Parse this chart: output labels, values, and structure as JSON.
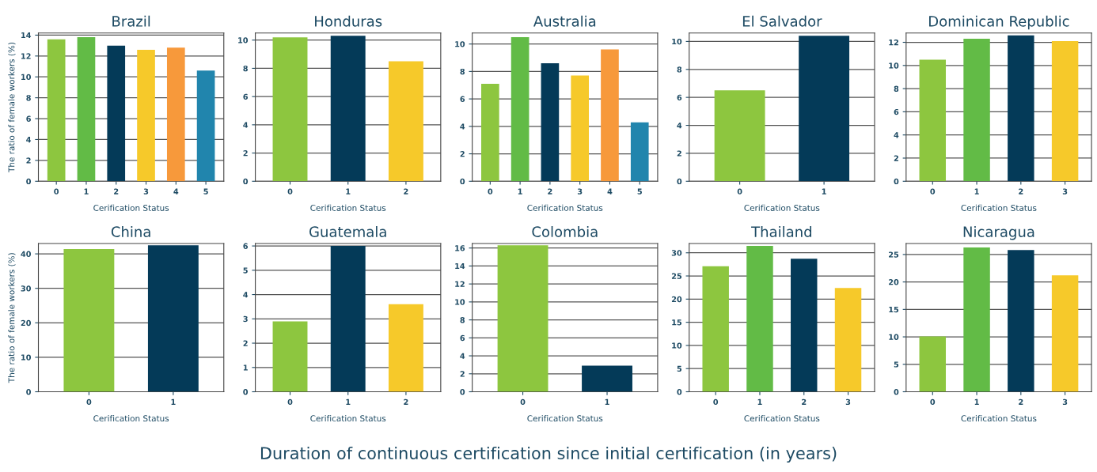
{
  "chart_data": [
    {
      "type": "bar",
      "title": "Brazil",
      "xlabel": "Cerification Status",
      "ylabel": "The ratio of female workers (%)",
      "categories": [
        "0",
        "1",
        "2",
        "3",
        "4",
        "5"
      ],
      "values": [
        13.6,
        13.8,
        13.0,
        12.6,
        12.8,
        10.6
      ],
      "colors": [
        "#8dc63f",
        "#62bb46",
        "#043a58",
        "#f6c92a",
        "#f7993b",
        "#2185ad"
      ],
      "ylim": [
        0,
        14.2
      ],
      "yticks": [
        0,
        2,
        4,
        6,
        8,
        10,
        12,
        14
      ],
      "grid": "y"
    },
    {
      "type": "bar",
      "title": "Honduras",
      "xlabel": "Cerification Status",
      "categories": [
        "0",
        "1",
        "2"
      ],
      "values": [
        10.2,
        10.3,
        8.5
      ],
      "colors": [
        "#8dc63f",
        "#043a58",
        "#f6c92a"
      ],
      "ylim": [
        0,
        10.5
      ],
      "yticks": [
        0,
        2,
        4,
        6,
        8,
        10
      ],
      "grid": "y"
    },
    {
      "type": "bar",
      "title": "Australia",
      "xlabel": "Cerification Status",
      "categories": [
        "0",
        "1",
        "2",
        "3",
        "4",
        "5"
      ],
      "values": [
        7.1,
        10.5,
        8.6,
        7.7,
        9.6,
        4.3
      ],
      "colors": [
        "#8dc63f",
        "#62bb46",
        "#043a58",
        "#f6c92a",
        "#f7993b",
        "#2185ad"
      ],
      "ylim": [
        0,
        10.8
      ],
      "yticks": [
        0,
        2,
        4,
        6,
        8,
        10
      ],
      "grid": "y"
    },
    {
      "type": "bar",
      "title": "El Salvador",
      "xlabel": "Cerification Status",
      "categories": [
        "0",
        "1"
      ],
      "values": [
        6.5,
        10.4
      ],
      "colors": [
        "#8dc63f",
        "#043a58"
      ],
      "ylim": [
        0,
        10.6
      ],
      "yticks": [
        0,
        2,
        4,
        6,
        8,
        10
      ],
      "grid": "y"
    },
    {
      "type": "bar",
      "title": "Dominican Republic",
      "xlabel": "Cerification Status",
      "categories": [
        "0",
        "1",
        "2",
        "3"
      ],
      "values": [
        10.5,
        12.3,
        12.6,
        12.1
      ],
      "colors": [
        "#8dc63f",
        "#62bb46",
        "#043a58",
        "#f6c92a"
      ],
      "ylim": [
        0,
        12.8
      ],
      "yticks": [
        0,
        2,
        4,
        6,
        8,
        10,
        12
      ],
      "grid": "y"
    },
    {
      "type": "bar",
      "title": "China",
      "xlabel": "Cerification Status",
      "ylabel": "The ratio of female workers (%)",
      "categories": [
        "0",
        "1"
      ],
      "values": [
        41.4,
        42.5
      ],
      "colors": [
        "#8dc63f",
        "#043a58"
      ],
      "ylim": [
        0,
        43
      ],
      "yticks": [
        0,
        10,
        20,
        30,
        40
      ],
      "grid": "y"
    },
    {
      "type": "bar",
      "title": "Guatemala",
      "xlabel": "Cerification Status",
      "categories": [
        "0",
        "1",
        "2"
      ],
      "values": [
        2.9,
        6.0,
        3.6
      ],
      "colors": [
        "#8dc63f",
        "#043a58",
        "#f6c92a"
      ],
      "ylim": [
        0,
        6.1
      ],
      "yticks": [
        0,
        1,
        2,
        3,
        4,
        5,
        6
      ],
      "grid": "y"
    },
    {
      "type": "bar",
      "title": "Colombia",
      "xlabel": "Cerification Status",
      "categories": [
        "0",
        "1"
      ],
      "values": [
        16.3,
        2.9
      ],
      "colors": [
        "#8dc63f",
        "#043a58"
      ],
      "ylim": [
        0,
        16.5
      ],
      "yticks": [
        0,
        2,
        4,
        6,
        8,
        10,
        12,
        14,
        16
      ],
      "grid": "y"
    },
    {
      "type": "bar",
      "title": "Thailand",
      "xlabel": "Cerification Status",
      "categories": [
        "0",
        "1",
        "2",
        "3"
      ],
      "values": [
        27.1,
        31.5,
        28.7,
        22.4
      ],
      "colors": [
        "#8dc63f",
        "#62bb46",
        "#043a58",
        "#f6c92a"
      ],
      "ylim": [
        0,
        32
      ],
      "yticks": [
        0,
        5,
        10,
        15,
        20,
        25,
        30
      ],
      "grid": "y"
    },
    {
      "type": "bar",
      "title": "Nicaragua",
      "xlabel": "Cerification Status",
      "categories": [
        "0",
        "1",
        "2",
        "3"
      ],
      "values": [
        10.1,
        26.3,
        25.8,
        21.2
      ],
      "colors": [
        "#8dc63f",
        "#62bb46",
        "#043a58",
        "#f6c92a"
      ],
      "ylim": [
        0,
        27
      ],
      "yticks": [
        0,
        5,
        10,
        15,
        20,
        25
      ],
      "grid": "y",
      "annotations": [
        "Duration of continuous certification since initial certification (in years)"
      ]
    }
  ]
}
